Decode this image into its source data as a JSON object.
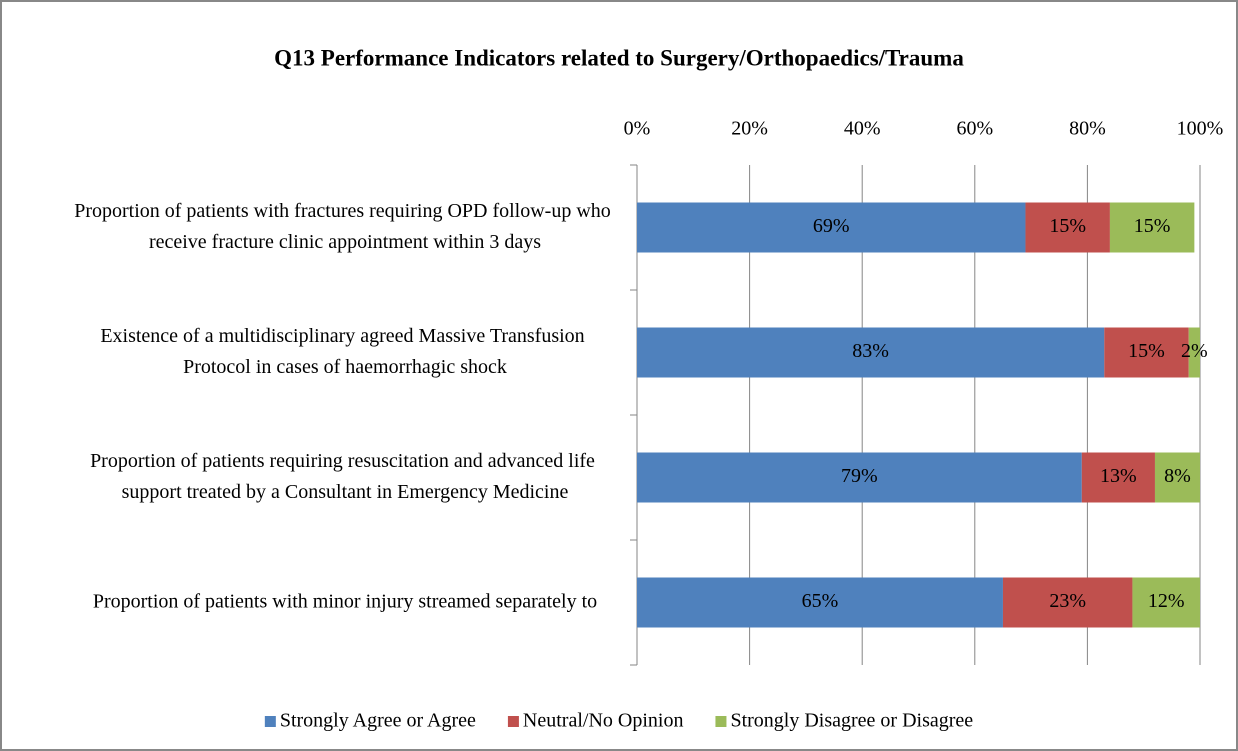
{
  "chart_data": {
    "type": "stacked_barh",
    "title": "Q13  Performance Indicators related to Surgery/Orthopaedics/Trauma",
    "categories": [
      "Proportion of patients with fractures requiring OPD follow-up who receive fracture clinic appointment within 3 days",
      "Existence of a multidisciplinary agreed Massive Transfusion Protocol in cases of haemorrhagic shock",
      "Proportion of patients requiring resuscitation and advanced life support treated by a Consultant in Emergency Medicine",
      "Proportion of patients with minor injury streamed separately to"
    ],
    "series": [
      {
        "name": "Strongly Agree or Agree",
        "color": "#4f81bd",
        "values": [
          69,
          83,
          79,
          65
        ],
        "value_labels": [
          "69%",
          "83%",
          "79%",
          "65%"
        ]
      },
      {
        "name": "Neutral/No Opinion",
        "color": "#c0504d",
        "values": [
          15,
          15,
          13,
          23
        ],
        "value_labels": [
          "15%",
          "15%",
          "13%",
          "23%"
        ]
      },
      {
        "name": "Strongly Disagree or Disagree",
        "color": "#9bbb59",
        "values": [
          15,
          2,
          8,
          12
        ],
        "value_labels": [
          "15%",
          "2%",
          "8%",
          "12%"
        ]
      }
    ],
    "xlim": [
      0,
      100
    ],
    "xticks": [
      {
        "value": 0,
        "label": "0%"
      },
      {
        "value": 20,
        "label": "20%"
      },
      {
        "value": 40,
        "label": "40%"
      },
      {
        "value": 60,
        "label": "60%"
      },
      {
        "value": 80,
        "label": "80%"
      },
      {
        "value": 100,
        "label": "100%"
      }
    ],
    "grid": true,
    "legend": "bottom"
  }
}
